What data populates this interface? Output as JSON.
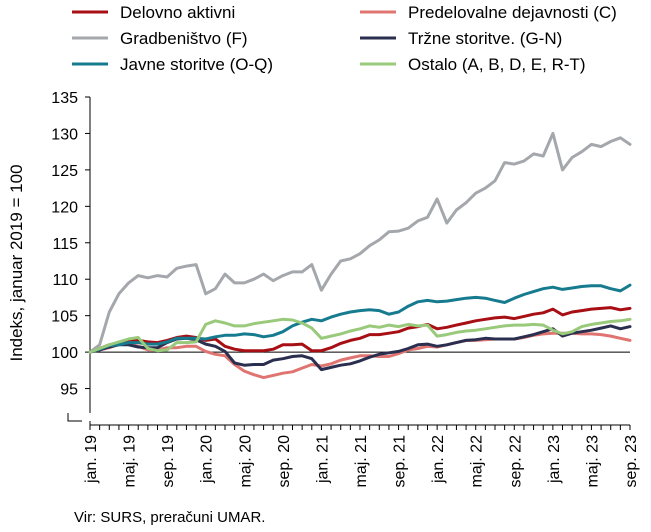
{
  "source": "Vir: SURS, preračuni UMAR.",
  "chart_data": {
    "type": "line",
    "ylabel": "Indeks, januar 2019 = 100",
    "xlabel": "",
    "ylim": [
      90,
      135
    ],
    "y_ticks": [
      95,
      100,
      105,
      110,
      115,
      120,
      125,
      130,
      135
    ],
    "y_axis_break": true,
    "reference_line": 100,
    "grid": false,
    "legend_position": "top",
    "x_labels": [
      "jan. 19",
      "maj. 19",
      "sep. 19",
      "jan. 20",
      "maj. 20",
      "sep. 20",
      "jan. 21",
      "maj. 21",
      "sep. 21",
      "jan. 22",
      "maj. 22",
      "sep. 22",
      "jan. 23",
      "maj. 23",
      "sep. 23"
    ],
    "x": [
      "jan. 19",
      "feb. 19",
      "mar. 19",
      "apr. 19",
      "maj. 19",
      "jun. 19",
      "jul. 19",
      "avg. 19",
      "sep. 19",
      "okt. 19",
      "nov. 19",
      "dec. 19",
      "jan. 20",
      "feb. 20",
      "mar. 20",
      "apr. 20",
      "maj. 20",
      "jun. 20",
      "jul. 20",
      "avg. 20",
      "sep. 20",
      "okt. 20",
      "nov. 20",
      "dec. 20",
      "jan. 21",
      "feb. 21",
      "mar. 21",
      "apr. 21",
      "maj. 21",
      "jun. 21",
      "jul. 21",
      "avg. 21",
      "sep. 21",
      "okt. 21",
      "nov. 21",
      "dec. 21",
      "jan. 22",
      "feb. 22",
      "mar. 22",
      "apr. 22",
      "maj. 22",
      "jun. 22",
      "jul. 22",
      "avg. 22",
      "sep. 22",
      "okt. 22",
      "nov. 22",
      "dec. 22",
      "jan. 23",
      "feb. 23",
      "mar. 23",
      "apr. 23",
      "maj. 23",
      "jun. 23",
      "jul. 23",
      "avg. 23",
      "sep. 23"
    ],
    "series": [
      {
        "name": "Delovno aktivni",
        "color": "#a80f14",
        "values": [
          100,
          100.5,
          101,
          101.2,
          101.5,
          101.6,
          101.4,
          101.3,
          101.6,
          102,
          102.2,
          102,
          101.6,
          101.8,
          100.8,
          100.4,
          100.2,
          100.2,
          100.2,
          100.4,
          101,
          101,
          101.1,
          100.2,
          100.2,
          100.6,
          101.2,
          101.6,
          101.9,
          102.4,
          102.4,
          102.6,
          102.8,
          103.3,
          103.5,
          103.8,
          103.2,
          103.4,
          103.7,
          104,
          104.3,
          104.5,
          104.7,
          104.8,
          104.6,
          104.9,
          105.2,
          105.4,
          105.9,
          105.1,
          105.5,
          105.7,
          105.9,
          106,
          106.1,
          105.8,
          106
        ]
      },
      {
        "name": "Predelovalne dejavnosti (C)",
        "color": "#e07470",
        "values": [
          100,
          100.3,
          100.6,
          101.1,
          101.2,
          100.8,
          100.3,
          100.3,
          100.6,
          100.6,
          100.8,
          100.8,
          100.1,
          99.7,
          99.5,
          98.3,
          97.4,
          96.9,
          96.5,
          96.8,
          97.1,
          97.3,
          97.8,
          98.3,
          98.1,
          98.4,
          98.9,
          99.2,
          99.5,
          99.5,
          99.4,
          99.4,
          99.8,
          100.3,
          100.5,
          100.8,
          100.7,
          101,
          101.3,
          101.6,
          101.6,
          101.7,
          101.8,
          101.8,
          101.8,
          102,
          102.3,
          102.5,
          102.6,
          102.6,
          102.6,
          102.5,
          102.5,
          102.4,
          102.2,
          101.9,
          101.6
        ]
      },
      {
        "name": "Gradbeništvo (F)",
        "color": "#a4a7ab",
        "values": [
          100,
          101,
          105.5,
          108,
          109.5,
          110.5,
          110.2,
          110.5,
          110.3,
          111.5,
          111.8,
          112,
          108,
          108.7,
          110.7,
          109.5,
          109.5,
          110,
          110.7,
          109.8,
          110.5,
          111,
          111,
          112,
          108.5,
          110.7,
          112.5,
          112.8,
          113.5,
          114.6,
          115.4,
          116.5,
          116.6,
          117,
          118,
          118.5,
          121,
          117.7,
          119.5,
          120.5,
          121.8,
          122.5,
          123.5,
          126,
          125.8,
          126.2,
          127.2,
          126.9,
          130,
          125,
          126.7,
          127.5,
          128.5,
          128.2,
          128.9,
          129.4,
          128.5
        ]
      },
      {
        "name": "Tržne storitve. (G-N)",
        "color": "#2b2f4f",
        "values": [
          100,
          100.3,
          100.7,
          101,
          101,
          100.7,
          100.6,
          100.6,
          101.3,
          101.8,
          101.9,
          101.7,
          101.1,
          100.8,
          100.1,
          98.5,
          98.2,
          98.3,
          98.3,
          98.9,
          99.1,
          99.4,
          99.5,
          99.1,
          97.6,
          97.9,
          98.2,
          98.4,
          98.8,
          99.3,
          99.7,
          99.9,
          100.1,
          100.5,
          101,
          101.1,
          100.8,
          101,
          101.3,
          101.6,
          101.7,
          101.9,
          101.8,
          101.8,
          101.8,
          102.1,
          102.4,
          102.8,
          103.2,
          102.2,
          102.6,
          102.8,
          103,
          103.3,
          103.6,
          103.2,
          103.5
        ]
      },
      {
        "name": "Javne storitve (O-Q)",
        "color": "#167b8f",
        "values": [
          100,
          100.4,
          100.9,
          101,
          101.3,
          101.3,
          101.1,
          101.1,
          101.4,
          101.9,
          101.9,
          101.9,
          101.8,
          102.1,
          102.3,
          102.3,
          102.5,
          102.4,
          102.1,
          102.3,
          102.8,
          103.6,
          104.1,
          104.5,
          104.3,
          104.8,
          105.2,
          105.5,
          105.7,
          105.8,
          105.7,
          105.2,
          105.5,
          106.3,
          106.9,
          107.1,
          106.9,
          107,
          107.2,
          107.4,
          107.5,
          107.4,
          107.1,
          106.8,
          107.4,
          107.9,
          108.3,
          108.7,
          108.9,
          108.6,
          108.8,
          109,
          109.1,
          109.1,
          108.7,
          108.4,
          109.2
        ]
      },
      {
        "name": "Ostalo (A, B, D, E, R-T)",
        "color": "#99c97a",
        "values": [
          100,
          100.5,
          101,
          101.4,
          101.8,
          102,
          100.5,
          100.2,
          100.3,
          101.3,
          101.3,
          101.4,
          103.8,
          104.3,
          104,
          103.6,
          103.6,
          103.9,
          104.1,
          104.3,
          104.5,
          104.4,
          104,
          103.3,
          101.9,
          102.2,
          102.5,
          102.9,
          103.2,
          103.6,
          103.4,
          103.7,
          103.5,
          103.8,
          103.6,
          103.7,
          102.2,
          102.4,
          102.7,
          102.9,
          103,
          103.2,
          103.4,
          103.6,
          103.7,
          103.7,
          103.8,
          103.7,
          103,
          102.5,
          102.8,
          103.5,
          103.8,
          104,
          104.2,
          104.3,
          104.5
        ]
      }
    ]
  }
}
